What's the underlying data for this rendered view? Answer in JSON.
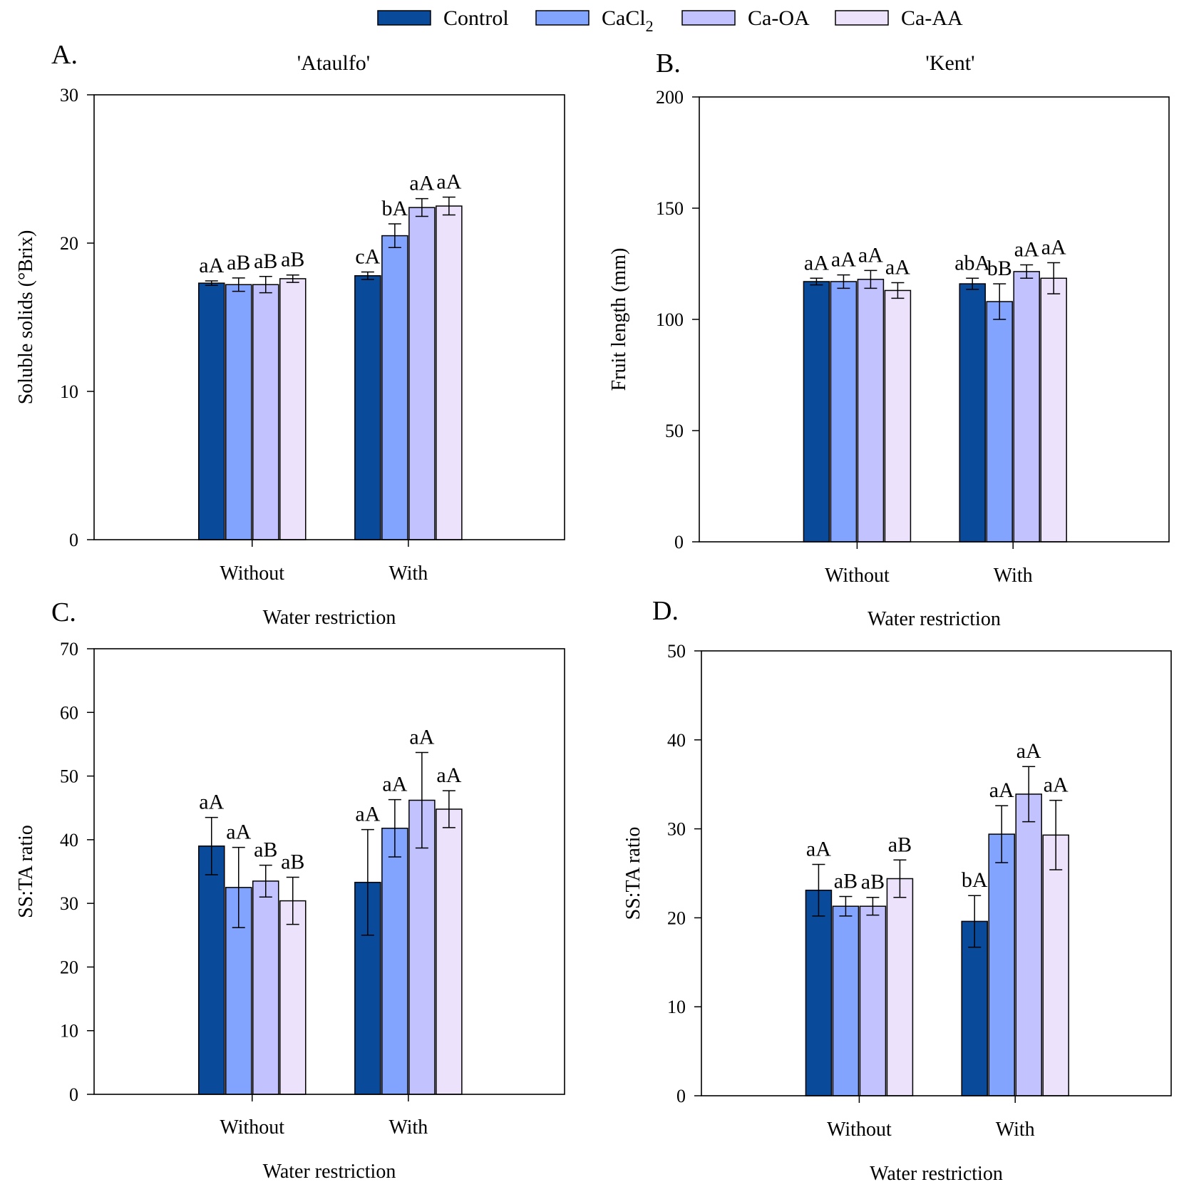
{
  "legend": {
    "items": [
      {
        "name": "Control",
        "color": "#0a4a9b"
      },
      {
        "name": "CaCl",
        "sub": "2",
        "color": "#82a4ff"
      },
      {
        "name": "Ca-OA",
        "color": "#c2c2ff"
      },
      {
        "name": "Ca-AA",
        "color": "#ece2fb"
      }
    ]
  },
  "chart_data": [
    {
      "panel_label": "A.",
      "type": "bar",
      "title": "'Ataulfo'",
      "xlabel": "Water restriction",
      "ylabel": "Soluble solids (°Brix)",
      "ylim": [
        0,
        30
      ],
      "yticks": [
        0,
        10,
        20,
        30
      ],
      "categories": [
        "Without",
        "With"
      ],
      "series": [
        {
          "name": "Control",
          "values": [
            17.3,
            17.8
          ],
          "errors": [
            0.15,
            0.25
          ],
          "labels": [
            "aA",
            "cA"
          ]
        },
        {
          "name": "CaCl2",
          "values": [
            17.2,
            20.5
          ],
          "errors": [
            0.45,
            0.8
          ],
          "labels": [
            "aB",
            "bA"
          ]
        },
        {
          "name": "Ca-OA",
          "values": [
            17.2,
            22.4
          ],
          "errors": [
            0.55,
            0.6
          ],
          "labels": [
            "aB",
            "aA"
          ]
        },
        {
          "name": "Ca-AA",
          "values": [
            17.6,
            22.5
          ],
          "errors": [
            0.25,
            0.6
          ],
          "labels": [
            "aB",
            "aA"
          ]
        }
      ]
    },
    {
      "panel_label": "B.",
      "type": "bar",
      "title": "'Kent'",
      "xlabel": "Water restriction",
      "ylabel": "Fruit length (mm)",
      "ylim": [
        0,
        200
      ],
      "yticks": [
        0,
        50,
        100,
        150,
        200
      ],
      "categories": [
        "Without",
        "With"
      ],
      "series": [
        {
          "name": "Control",
          "values": [
            117,
            116
          ],
          "errors": [
            1.5,
            2.5
          ],
          "labels": [
            "aA",
            "abA"
          ]
        },
        {
          "name": "CaCl2",
          "values": [
            117,
            108
          ],
          "errors": [
            3,
            8
          ],
          "labels": [
            "aA",
            "bB"
          ]
        },
        {
          "name": "Ca-OA",
          "values": [
            118,
            121.5
          ],
          "errors": [
            4,
            3
          ],
          "labels": [
            "aA",
            "aA"
          ]
        },
        {
          "name": "Ca-AA",
          "values": [
            113,
            118.5
          ],
          "errors": [
            3.5,
            7
          ],
          "labels": [
            "aA",
            "aA"
          ]
        }
      ]
    },
    {
      "panel_label": "C.",
      "type": "bar",
      "title": "",
      "xlabel": "Water restriction",
      "ylabel": "SS:TA ratio",
      "ylim": [
        0,
        70
      ],
      "yticks": [
        0,
        10,
        20,
        30,
        40,
        50,
        60,
        70
      ],
      "categories": [
        "Without",
        "With"
      ],
      "series": [
        {
          "name": "Control",
          "values": [
            39,
            33.3
          ],
          "errors": [
            4.5,
            8.3
          ],
          "labels": [
            "aA",
            "aA"
          ]
        },
        {
          "name": "CaCl2",
          "values": [
            32.5,
            41.8
          ],
          "errors": [
            6.3,
            4.5
          ],
          "labels": [
            "aA",
            "aA"
          ]
        },
        {
          "name": "Ca-OA",
          "values": [
            33.5,
            46.2
          ],
          "errors": [
            2.5,
            7.5
          ],
          "labels": [
            "aB",
            "aA"
          ]
        },
        {
          "name": "Ca-AA",
          "values": [
            30.4,
            44.8
          ],
          "errors": [
            3.7,
            2.9
          ],
          "labels": [
            "aB",
            "aA"
          ]
        }
      ]
    },
    {
      "panel_label": "D.",
      "type": "bar",
      "title": "",
      "xlabel": "Water restriction",
      "ylabel": "SS:TA ratio",
      "ylim": [
        0,
        50
      ],
      "yticks": [
        0,
        10,
        20,
        30,
        40,
        50
      ],
      "categories": [
        "Without",
        "With"
      ],
      "series": [
        {
          "name": "Control",
          "values": [
            23.1,
            19.6
          ],
          "errors": [
            2.9,
            2.9
          ],
          "labels": [
            "aA",
            "bA"
          ]
        },
        {
          "name": "CaCl2",
          "values": [
            21.3,
            29.4
          ],
          "errors": [
            1.1,
            3.2
          ],
          "labels": [
            "aB",
            "aA"
          ]
        },
        {
          "name": "Ca-OA",
          "values": [
            21.3,
            33.9
          ],
          "errors": [
            1,
            3.1
          ],
          "labels": [
            "aB",
            "aA"
          ]
        },
        {
          "name": "Ca-AA",
          "values": [
            24.4,
            29.3
          ],
          "errors": [
            2.1,
            3.9
          ],
          "labels": [
            "aB",
            "aA"
          ]
        }
      ]
    }
  ]
}
